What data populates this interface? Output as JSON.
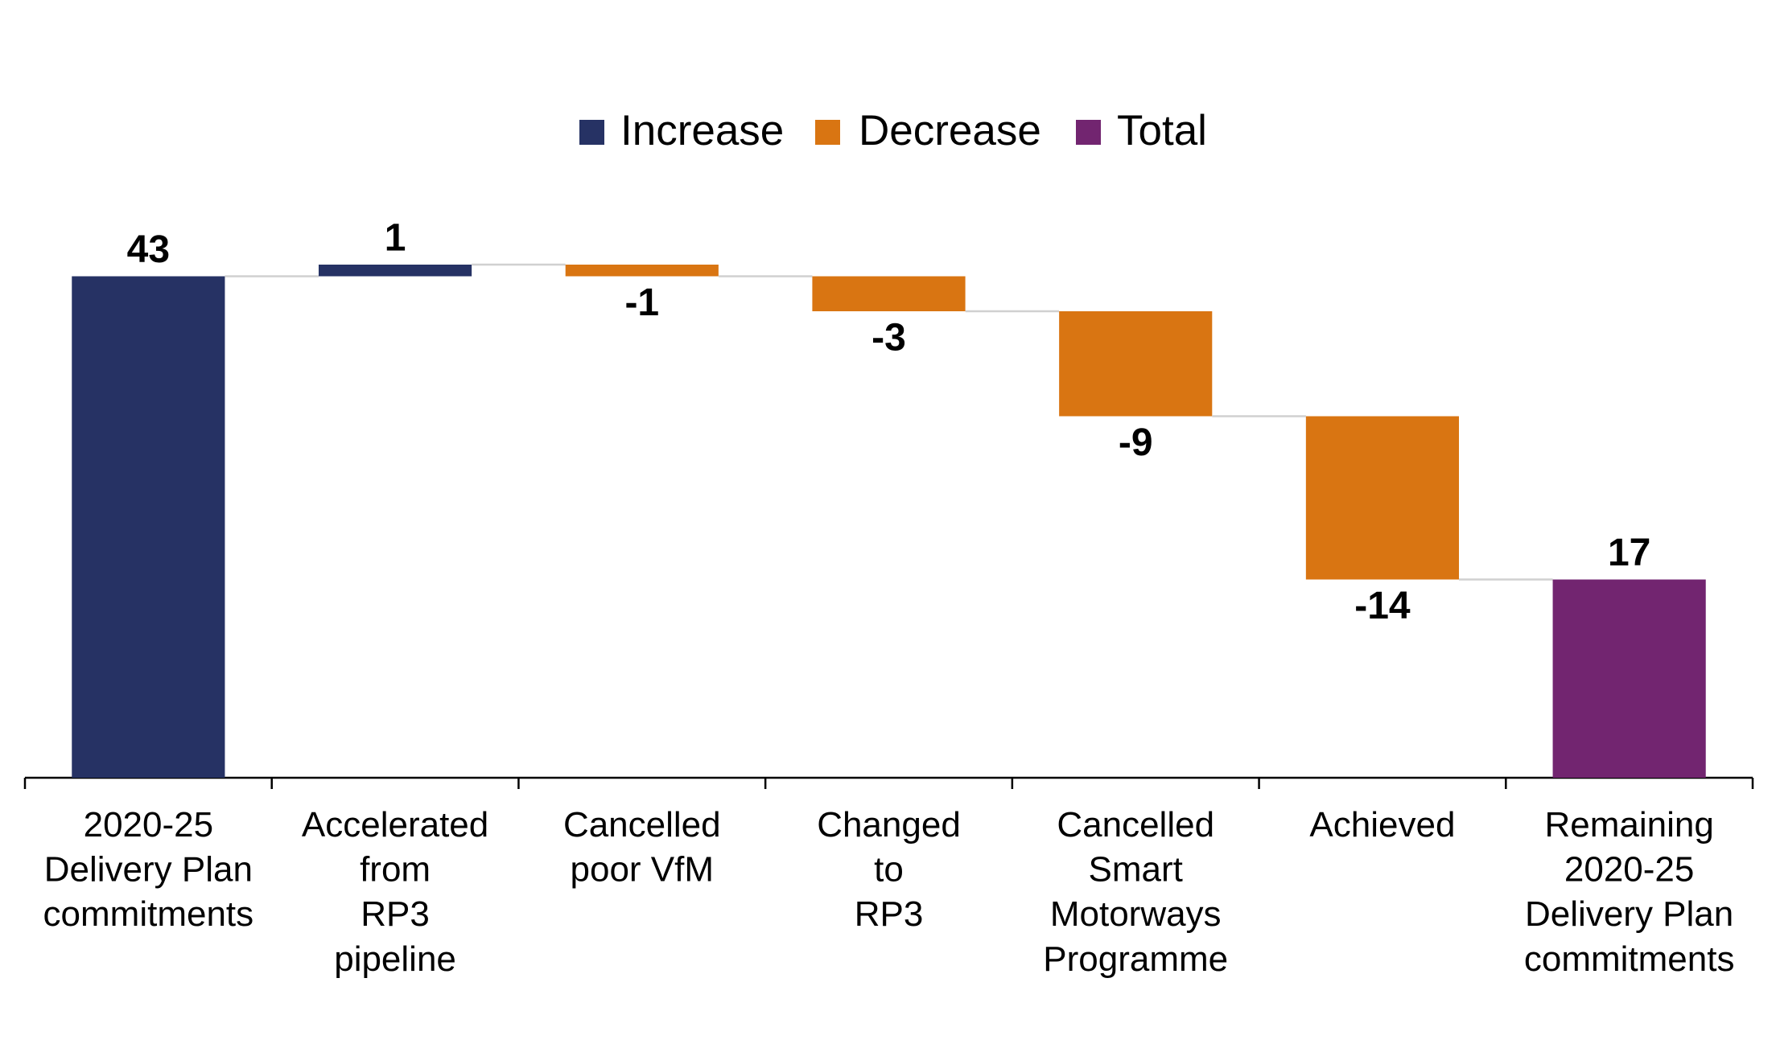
{
  "chart_data": {
    "type": "waterfall",
    "categories": [
      [
        "2020-25",
        "Delivery Plan",
        "commitments"
      ],
      [
        "Accelerated",
        "from",
        "RP3",
        "pipeline"
      ],
      [
        "Cancelled",
        "poor VfM"
      ],
      [
        "Changed",
        "to",
        "RP3"
      ],
      [
        "Cancelled",
        "Smart",
        "Motorways",
        "Programme"
      ],
      [
        "Achieved"
      ],
      [
        "Remaining",
        "2020-25",
        "Delivery Plan",
        "commitments"
      ]
    ],
    "series": [
      {
        "name": "Increase",
        "color": "#263264",
        "values": [
          43,
          1,
          null,
          null,
          null,
          null,
          null
        ]
      },
      {
        "name": "Decrease",
        "color": "#d97512",
        "values": [
          null,
          null,
          -1,
          -3,
          -9,
          -14,
          null
        ]
      },
      {
        "name": "Total",
        "color": "#722570",
        "values": [
          null,
          null,
          null,
          null,
          null,
          null,
          17
        ]
      }
    ],
    "ylim": [
      0,
      50
    ],
    "legend": "top"
  }
}
